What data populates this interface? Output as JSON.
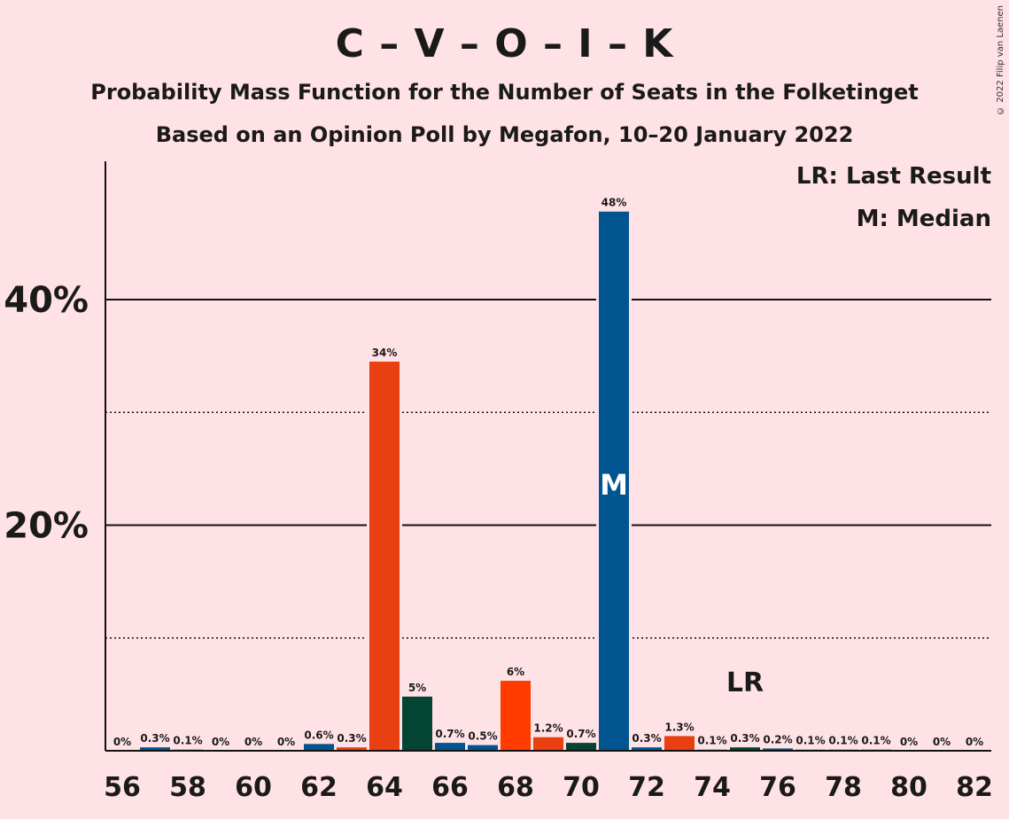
{
  "title": "C – V – O – I – K",
  "subtitle1": "Probability Mass Function for the Number of Seats in the Folketinget",
  "subtitle2": "Based on an Opinion Poll by Megafon, 10–20 January 2022",
  "copyright": "© 2022 Filip van Laenen",
  "legend": {
    "lr": "LR: Last Result",
    "m": "M: Median"
  },
  "markers": {
    "median_label": "M",
    "median_seat": 71,
    "last_result_label": "LR",
    "last_result_seat": 75
  },
  "chart_data": {
    "type": "bar",
    "title": "C – V – O – I – K",
    "ylim": [
      0,
      50
    ],
    "y_gridlines_major": [
      20,
      40
    ],
    "y_gridlines_minor": [
      10,
      30
    ],
    "y_tick_labels": [
      "20%",
      "40%"
    ],
    "x_tick_labels": [
      "56",
      "58",
      "60",
      "62",
      "64",
      "66",
      "68",
      "70",
      "72",
      "74",
      "76",
      "78",
      "80",
      "82"
    ],
    "seats": [
      56,
      57,
      58,
      59,
      60,
      61,
      62,
      63,
      64,
      65,
      66,
      67,
      68,
      69,
      70,
      71,
      72,
      73,
      74,
      75,
      76,
      77,
      78,
      79,
      80,
      81,
      82
    ],
    "values": [
      0,
      0.3,
      0.1,
      0,
      0,
      0,
      0.6,
      0.3,
      34.5,
      4.8,
      0.7,
      0.5,
      6.2,
      1.2,
      0.7,
      47.8,
      0.3,
      1.3,
      0.1,
      0.3,
      0.2,
      0.1,
      0.1,
      0.1,
      0,
      0,
      0
    ],
    "labels": [
      "0%",
      "0.3%",
      "0.1%",
      "0%",
      "0%",
      "0%",
      "0.6%",
      "0.3%",
      "34%",
      "5%",
      "0.7%",
      "0.5%",
      "6%",
      "1.2%",
      "0.7%",
      "48%",
      "0.3%",
      "1.3%",
      "0.1%",
      "0.3%",
      "0.2%",
      "0.1%",
      "0.1%",
      "0.1%",
      "0%",
      "0%",
      "0%"
    ],
    "colors": [
      "#00548f",
      "#00548f",
      "#00548f",
      "#00548f",
      "#00548f",
      "#00548f",
      "#00548f",
      "#e84010",
      "#e84010",
      "#034432",
      "#00548f",
      "#00548f",
      "#ff3b00",
      "#e84010",
      "#034432",
      "#00548f",
      "#00548f",
      "#e84010",
      "#00548f",
      "#034432",
      "#00548f",
      "#00548f",
      "#00548f",
      "#00548f",
      "#00548f",
      "#00548f",
      "#00548f"
    ]
  }
}
